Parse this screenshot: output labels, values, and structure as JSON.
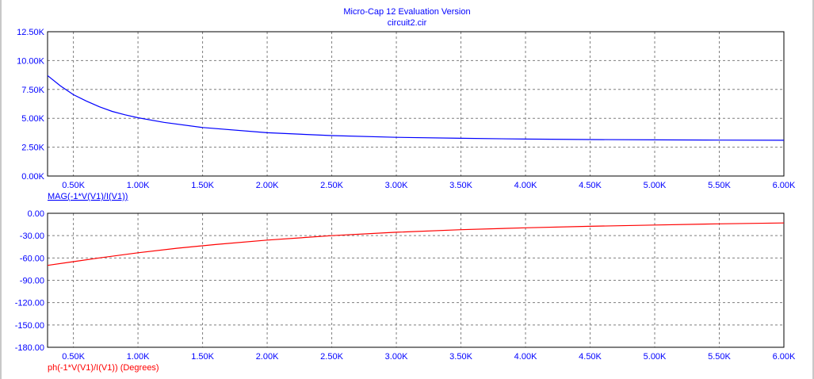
{
  "window": {
    "title": "Micro-Cap 12 Evaluation Version",
    "subtitle": "circuit2.cir"
  },
  "colors": {
    "magnitude_trace": "#0000ff",
    "phase_trace": "#ff0000",
    "axis_text": "#0000ff",
    "grid": "#7f7f7f",
    "frame": "#000000"
  },
  "chart_data": [
    {
      "type": "line",
      "ylabel": "MAG(-1*V(V1)/I(V1))",
      "xlim": [
        0.3,
        6.0
      ],
      "ylim": [
        0,
        12.5
      ],
      "xticks": [
        "0.50K",
        "1.00K",
        "1.50K",
        "2.00K",
        "2.50K",
        "3.00K",
        "3.50K",
        "4.00K",
        "4.50K",
        "5.00K",
        "5.50K",
        "6.00K"
      ],
      "yticks": [
        "0.00K",
        "2.50K",
        "5.00K",
        "7.50K",
        "10.00K",
        "12.50K"
      ],
      "grid": true,
      "series": [
        {
          "name": "MAG(-1*V(V1)/I(V1))",
          "x": [
            0.3,
            0.4,
            0.5,
            0.6,
            0.7,
            0.8,
            0.9,
            1.0,
            1.2,
            1.5,
            2.0,
            2.5,
            3.0,
            3.5,
            4.0,
            4.5,
            5.0,
            5.5,
            6.0
          ],
          "y": [
            8.7,
            7.8,
            7.05,
            6.5,
            6.0,
            5.6,
            5.3,
            5.05,
            4.65,
            4.2,
            3.75,
            3.5,
            3.35,
            3.27,
            3.2,
            3.16,
            3.13,
            3.11,
            3.1
          ]
        }
      ]
    },
    {
      "type": "line",
      "ylabel": "ph(-1*V(V1)/I(V1)) (Degrees)",
      "xlim": [
        0.3,
        6.0
      ],
      "ylim": [
        -180,
        0
      ],
      "xticks": [
        "0.50K",
        "1.00K",
        "1.50K",
        "2.00K",
        "2.50K",
        "3.00K",
        "3.50K",
        "4.00K",
        "4.50K",
        "5.00K",
        "5.50K",
        "6.00K"
      ],
      "yticks": [
        "0.00",
        "-30.00",
        "-60.00",
        "-90.00",
        "-120.00",
        "-150.00",
        "-180.00"
      ],
      "grid": true,
      "series": [
        {
          "name": "ph(-1*V(V1)/I(V1)) (Degrees)",
          "x": [
            0.3,
            0.5,
            0.7,
            1.0,
            1.3,
            1.6,
            2.0,
            2.5,
            3.0,
            3.5,
            4.0,
            4.5,
            5.0,
            5.5,
            6.0
          ],
          "y": [
            -70,
            -65,
            -60,
            -53,
            -47,
            -42,
            -36,
            -30,
            -25.5,
            -22,
            -19.5,
            -17.5,
            -15.8,
            -14.2,
            -13
          ]
        }
      ]
    }
  ]
}
